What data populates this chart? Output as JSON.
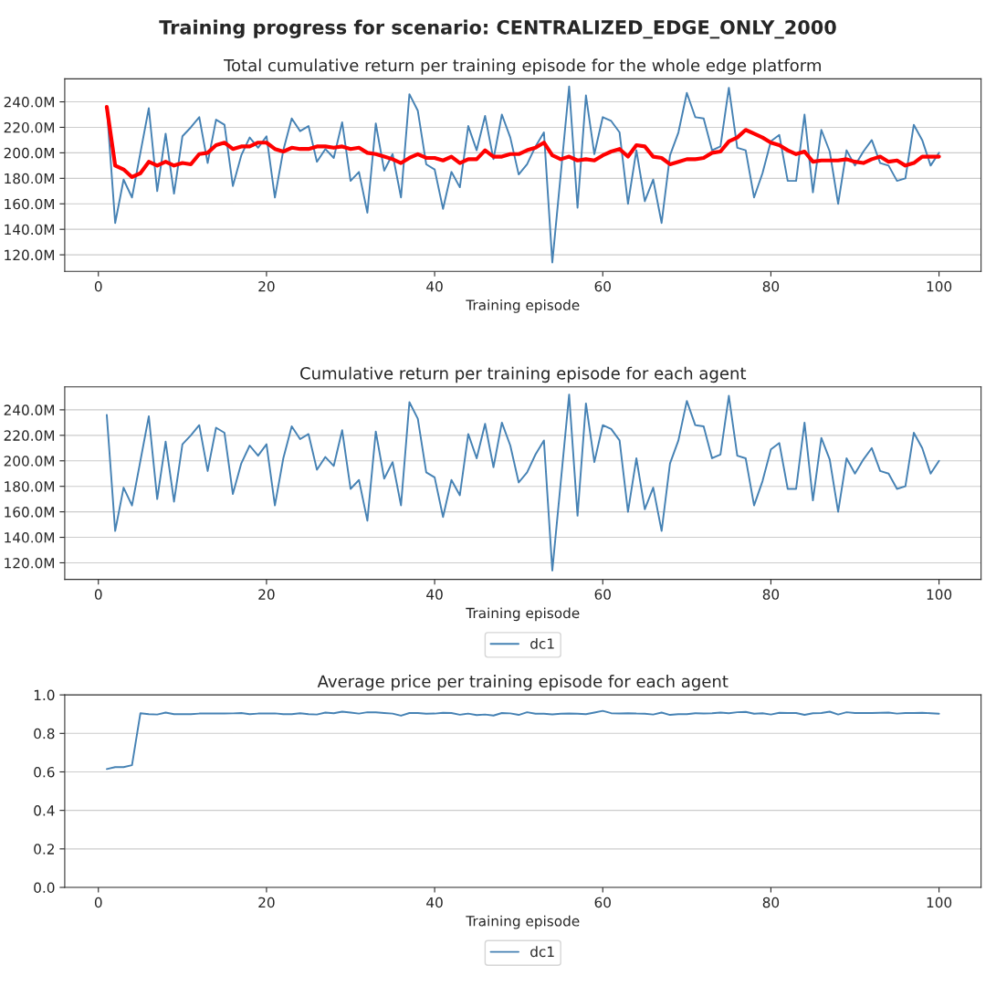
{
  "chart_data": [
    {
      "type": "line",
      "title": "Training progress for scenario: CENTRALIZED_EDGE_ONLY_2000",
      "subtitle": "Total cumulative return per training episode for the whole edge platform",
      "xlabel": "Training episode",
      "x": [
        1,
        2,
        3,
        4,
        5,
        6,
        7,
        8,
        9,
        10,
        11,
        12,
        13,
        14,
        15,
        16,
        17,
        18,
        19,
        20,
        21,
        22,
        23,
        24,
        25,
        26,
        27,
        28,
        29,
        30,
        31,
        32,
        33,
        34,
        35,
        36,
        37,
        38,
        39,
        40,
        41,
        42,
        43,
        44,
        45,
        46,
        47,
        48,
        49,
        50,
        51,
        52,
        53,
        54,
        55,
        56,
        57,
        58,
        59,
        60,
        61,
        62,
        63,
        64,
        65,
        66,
        67,
        68,
        69,
        70,
        71,
        72,
        73,
        74,
        75,
        76,
        77,
        78,
        79,
        80,
        81,
        82,
        83,
        84,
        85,
        86,
        87,
        88,
        89,
        90,
        91,
        92,
        93,
        94,
        95,
        96,
        97,
        98,
        99,
        100
      ],
      "series": [
        {
          "color": "#4682b4",
          "values": [
            236,
            145,
            179,
            165,
            200,
            235,
            170,
            215,
            168,
            213,
            220,
            228,
            192,
            226,
            222,
            174,
            198,
            212,
            204,
            213,
            165,
            202,
            227,
            217,
            221,
            193,
            203,
            196,
            224,
            178,
            185,
            153,
            223,
            186,
            199,
            165,
            246,
            233,
            191,
            187,
            156,
            185,
            173,
            221,
            202,
            229,
            195,
            230,
            212,
            183,
            191,
            205,
            216,
            114,
            183,
            252,
            157,
            245,
            199,
            228,
            225,
            216,
            160,
            202,
            162,
            179,
            145,
            198,
            216,
            247,
            228,
            227,
            202,
            205,
            251,
            204,
            202,
            165,
            184,
            209,
            214,
            178,
            178,
            230,
            169,
            218,
            201,
            160,
            202,
            190,
            201,
            210,
            192,
            190,
            178,
            180,
            222,
            210,
            190,
            200
          ]
        },
        {
          "color": "#ff0000",
          "values": [
            236,
            190,
            187,
            181,
            184,
            193,
            190,
            193,
            190,
            192,
            191,
            199,
            200,
            206,
            208,
            203,
            205,
            205,
            208,
            208,
            203,
            201,
            204,
            203,
            203,
            205,
            205,
            204,
            205,
            203,
            204,
            200,
            199,
            197,
            195,
            192,
            196,
            199,
            196,
            196,
            194,
            197,
            192,
            195,
            195,
            202,
            197,
            197,
            199,
            199,
            202,
            204,
            208,
            198,
            195,
            197,
            194,
            195,
            194,
            198,
            201,
            203,
            197,
            206,
            205,
            197,
            196,
            191,
            193,
            195,
            195,
            196,
            200,
            201,
            209,
            212,
            218,
            215,
            212,
            208,
            206,
            202,
            199,
            201,
            193,
            194,
            194,
            194,
            195,
            193,
            192,
            195,
            197,
            193,
            194,
            190,
            192,
            197,
            197,
            197
          ]
        }
      ],
      "xlim": [
        -4,
        105
      ],
      "xticks": [
        0,
        20,
        40,
        60,
        80,
        100
      ],
      "ylim": [
        107,
        258
      ],
      "yticks": [
        {
          "value": 120,
          "label": "120.0M"
        },
        {
          "value": 140,
          "label": "140.0M"
        },
        {
          "value": 160,
          "label": "160.0M"
        },
        {
          "value": 180,
          "label": "180.0M"
        },
        {
          "value": 200,
          "label": "200.0M"
        },
        {
          "value": 220,
          "label": "220.0M"
        },
        {
          "value": 240,
          "label": "240.0M"
        }
      ],
      "grid": "y"
    },
    {
      "type": "line",
      "title": "Cumulative return per training episode for each agent",
      "xlabel": "Training episode",
      "x": [
        1,
        2,
        3,
        4,
        5,
        6,
        7,
        8,
        9,
        10,
        11,
        12,
        13,
        14,
        15,
        16,
        17,
        18,
        19,
        20,
        21,
        22,
        23,
        24,
        25,
        26,
        27,
        28,
        29,
        30,
        31,
        32,
        33,
        34,
        35,
        36,
        37,
        38,
        39,
        40,
        41,
        42,
        43,
        44,
        45,
        46,
        47,
        48,
        49,
        50,
        51,
        52,
        53,
        54,
        55,
        56,
        57,
        58,
        59,
        60,
        61,
        62,
        63,
        64,
        65,
        66,
        67,
        68,
        69,
        70,
        71,
        72,
        73,
        74,
        75,
        76,
        77,
        78,
        79,
        80,
        81,
        82,
        83,
        84,
        85,
        86,
        87,
        88,
        89,
        90,
        91,
        92,
        93,
        94,
        95,
        96,
        97,
        98,
        99,
        100
      ],
      "series": [
        {
          "name": "dc1",
          "color": "#4682b4",
          "values": [
            236,
            145,
            179,
            165,
            200,
            235,
            170,
            215,
            168,
            213,
            220,
            228,
            192,
            226,
            222,
            174,
            198,
            212,
            204,
            213,
            165,
            202,
            227,
            217,
            221,
            193,
            203,
            196,
            224,
            178,
            185,
            153,
            223,
            186,
            199,
            165,
            246,
            233,
            191,
            187,
            156,
            185,
            173,
            221,
            202,
            229,
            195,
            230,
            212,
            183,
            191,
            205,
            216,
            114,
            183,
            252,
            157,
            245,
            199,
            228,
            225,
            216,
            160,
            202,
            162,
            179,
            145,
            198,
            216,
            247,
            228,
            227,
            202,
            205,
            251,
            204,
            202,
            165,
            184,
            209,
            214,
            178,
            178,
            230,
            169,
            218,
            201,
            160,
            202,
            190,
            201,
            210,
            192,
            190,
            178,
            180,
            222,
            210,
            190,
            200
          ]
        }
      ],
      "xlim": [
        -4,
        105
      ],
      "xticks": [
        0,
        20,
        40,
        60,
        80,
        100
      ],
      "ylim": [
        107,
        258
      ],
      "yticks": [
        {
          "value": 120,
          "label": "120.0M"
        },
        {
          "value": 140,
          "label": "140.0M"
        },
        {
          "value": 160,
          "label": "160.0M"
        },
        {
          "value": 180,
          "label": "180.0M"
        },
        {
          "value": 200,
          "label": "200.0M"
        },
        {
          "value": 220,
          "label": "220.0M"
        },
        {
          "value": 240,
          "label": "240.0M"
        }
      ],
      "grid": "y",
      "legend": "bottom"
    },
    {
      "type": "line",
      "title": "Average price per training episode for each agent",
      "xlabel": "Training episode",
      "x": [
        1,
        2,
        3,
        4,
        5,
        6,
        7,
        8,
        9,
        10,
        11,
        12,
        13,
        14,
        15,
        16,
        17,
        18,
        19,
        20,
        21,
        22,
        23,
        24,
        25,
        26,
        27,
        28,
        29,
        30,
        31,
        32,
        33,
        34,
        35,
        36,
        37,
        38,
        39,
        40,
        41,
        42,
        43,
        44,
        45,
        46,
        47,
        48,
        49,
        50,
        51,
        52,
        53,
        54,
        55,
        56,
        57,
        58,
        59,
        60,
        61,
        62,
        63,
        64,
        65,
        66,
        67,
        68,
        69,
        70,
        71,
        72,
        73,
        74,
        75,
        76,
        77,
        78,
        79,
        80,
        81,
        82,
        83,
        84,
        85,
        86,
        87,
        88,
        89,
        90,
        91,
        92,
        93,
        94,
        95,
        96,
        97,
        98,
        99,
        100
      ],
      "series": [
        {
          "name": "dc1",
          "color": "#4682b4",
          "values": [
            0.615,
            0.625,
            0.625,
            0.635,
            0.905,
            0.9,
            0.898,
            0.908,
            0.9,
            0.9,
            0.9,
            0.903,
            0.903,
            0.904,
            0.903,
            0.904,
            0.906,
            0.9,
            0.903,
            0.903,
            0.904,
            0.9,
            0.9,
            0.905,
            0.9,
            0.898,
            0.908,
            0.905,
            0.913,
            0.908,
            0.903,
            0.91,
            0.909,
            0.906,
            0.903,
            0.892,
            0.906,
            0.906,
            0.902,
            0.903,
            0.907,
            0.906,
            0.897,
            0.903,
            0.895,
            0.898,
            0.893,
            0.906,
            0.904,
            0.896,
            0.91,
            0.902,
            0.902,
            0.899,
            0.902,
            0.903,
            0.902,
            0.9,
            0.908,
            0.917,
            0.905,
            0.903,
            0.905,
            0.903,
            0.902,
            0.898,
            0.908,
            0.896,
            0.9,
            0.9,
            0.905,
            0.903,
            0.905,
            0.908,
            0.905,
            0.91,
            0.912,
            0.902,
            0.905,
            0.898,
            0.907,
            0.906,
            0.906,
            0.896,
            0.905,
            0.906,
            0.913,
            0.898,
            0.91,
            0.906,
            0.906,
            0.906,
            0.907,
            0.908,
            0.903,
            0.906,
            0.906,
            0.907,
            0.905,
            0.902
          ]
        }
      ],
      "xlim": [
        -4,
        105
      ],
      "xticks": [
        0,
        20,
        40,
        60,
        80,
        100
      ],
      "ylim": [
        0,
        1
      ],
      "yticks": [
        {
          "value": 0,
          "label": "0.0"
        },
        {
          "value": 0.2,
          "label": "0.2"
        },
        {
          "value": 0.4,
          "label": "0.4"
        },
        {
          "value": 0.6,
          "label": "0.6"
        },
        {
          "value": 0.8,
          "label": "0.8"
        },
        {
          "value": 1,
          "label": "1.0"
        }
      ],
      "grid": "y",
      "legend": "bottom"
    }
  ]
}
